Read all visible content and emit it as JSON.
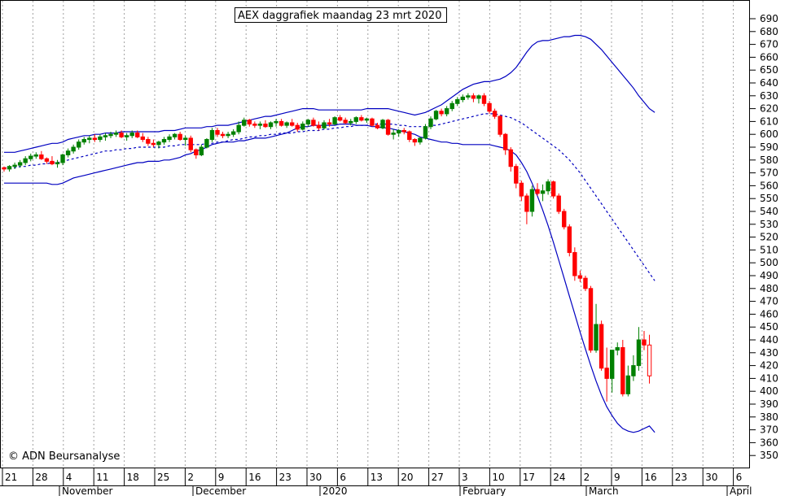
{
  "chart_data": {
    "type": "candlestick",
    "title": "AEX daggrafiek maandag 23 mrt 2020",
    "copyright": "© ADN Beursanalyse",
    "colors": {
      "background": "#ffffff",
      "up_candle": "#008000",
      "down_candle": "#ff0000",
      "bollinger_band": "#0000c0",
      "moving_average": "#0000c0",
      "grid": "#a0a0a0",
      "axis": "#000000"
    },
    "y_axis": {
      "position": "right",
      "min": 340,
      "max": 700,
      "ticks": [
        690,
        680,
        670,
        660,
        650,
        640,
        630,
        620,
        610,
        600,
        590,
        580,
        570,
        560,
        550,
        540,
        530,
        520,
        510,
        500,
        490,
        480,
        470,
        460,
        450,
        440,
        430,
        420,
        410,
        400,
        390,
        380,
        370,
        360,
        350
      ]
    },
    "x_axis": {
      "day_ticks": [
        "21",
        "28",
        "4",
        "11",
        "18",
        "25",
        "2",
        "9",
        "16",
        "23",
        "30",
        "6",
        "13",
        "20",
        "27",
        "3",
        "10",
        "17",
        "24",
        "2",
        "9",
        "16",
        "23",
        "30",
        "6"
      ],
      "month_labels": [
        "November",
        "December",
        "2020",
        "February",
        "March",
        "April"
      ]
    },
    "grid": {
      "vertical": true,
      "horizontal": false
    },
    "candles": [
      [
        574,
        575,
        571,
        573
      ],
      [
        573,
        576,
        571,
        575
      ],
      [
        575,
        578,
        573,
        576
      ],
      [
        576,
        580,
        574,
        578
      ],
      [
        578,
        583,
        576,
        581
      ],
      [
        581,
        585,
        579,
        583
      ],
      [
        583,
        586,
        581,
        584
      ],
      [
        584,
        587,
        580,
        581
      ],
      [
        581,
        582,
        577,
        579
      ],
      [
        579,
        583,
        576,
        577
      ],
      [
        577,
        580,
        574,
        578
      ],
      [
        578,
        585,
        576,
        584
      ],
      [
        584,
        589,
        582,
        587
      ],
      [
        587,
        592,
        585,
        590
      ],
      [
        590,
        596,
        588,
        594
      ],
      [
        594,
        598,
        592,
        596
      ],
      [
        596,
        599,
        593,
        597
      ],
      [
        597,
        600,
        594,
        596
      ],
      [
        596,
        600,
        594,
        598
      ],
      [
        598,
        601,
        595,
        599
      ],
      [
        599,
        602,
        597,
        600
      ],
      [
        600,
        603,
        598,
        601
      ],
      [
        601,
        603,
        597,
        598
      ],
      [
        598,
        601,
        595,
        599
      ],
      [
        599,
        603,
        597,
        601
      ],
      [
        601,
        603,
        597,
        598
      ],
      [
        598,
        601,
        594,
        596
      ],
      [
        596,
        598,
        591,
        593
      ],
      [
        593,
        596,
        590,
        592
      ],
      [
        592,
        595,
        589,
        594
      ],
      [
        594,
        598,
        592,
        596
      ],
      [
        596,
        600,
        594,
        598
      ],
      [
        598,
        601,
        596,
        600
      ],
      [
        600,
        602,
        595,
        596
      ],
      [
        596,
        599,
        591,
        597
      ],
      [
        597,
        599,
        586,
        588
      ],
      [
        588,
        589,
        581,
        584
      ],
      [
        584,
        592,
        583,
        590
      ],
      [
        590,
        597,
        589,
        596
      ],
      [
        596,
        605,
        594,
        603
      ],
      [
        603,
        605,
        598,
        600
      ],
      [
        600,
        602,
        597,
        599
      ],
      [
        599,
        602,
        597,
        600
      ],
      [
        600,
        604,
        598,
        602
      ],
      [
        602,
        610,
        600,
        607
      ],
      [
        607,
        613,
        606,
        611
      ],
      [
        611,
        612,
        606,
        608
      ],
      [
        608,
        610,
        605,
        607
      ],
      [
        607,
        610,
        604,
        608
      ],
      [
        608,
        611,
        605,
        606
      ],
      [
        606,
        610,
        604,
        609
      ],
      [
        609,
        612,
        606,
        610
      ],
      [
        610,
        612,
        606,
        607
      ],
      [
        607,
        610,
        605,
        609
      ],
      [
        609,
        612,
        606,
        607
      ],
      [
        607,
        609,
        602,
        604
      ],
      [
        604,
        610,
        603,
        608
      ],
      [
        608,
        612,
        606,
        611
      ],
      [
        611,
        613,
        606,
        607
      ],
      [
        607,
        610,
        603,
        605
      ],
      [
        605,
        611,
        604,
        609
      ],
      [
        609,
        612,
        606,
        608
      ],
      [
        608,
        614,
        607,
        613
      ],
      [
        613,
        615,
        610,
        611
      ],
      [
        611,
        613,
        608,
        609
      ],
      [
        609,
        612,
        607,
        610
      ],
      [
        610,
        614,
        608,
        613
      ],
      [
        613,
        615,
        610,
        611
      ],
      [
        611,
        613,
        609,
        612
      ],
      [
        612,
        613,
        606,
        607
      ],
      [
        607,
        609,
        604,
        605
      ],
      [
        605,
        612,
        604,
        611
      ],
      [
        611,
        612,
        599,
        600
      ],
      [
        600,
        604,
        596,
        601
      ],
      [
        601,
        604,
        598,
        603
      ],
      [
        603,
        605,
        600,
        602
      ],
      [
        602,
        603,
        594,
        596
      ],
      [
        596,
        597,
        591,
        594
      ],
      [
        594,
        598,
        592,
        597
      ],
      [
        597,
        608,
        596,
        606
      ],
      [
        606,
        614,
        604,
        612
      ],
      [
        612,
        619,
        611,
        618
      ],
      [
        618,
        620,
        614,
        616
      ],
      [
        616,
        622,
        614,
        620
      ],
      [
        620,
        626,
        618,
        624
      ],
      [
        624,
        629,
        622,
        627
      ],
      [
        627,
        631,
        625,
        629
      ],
      [
        629,
        632,
        627,
        630
      ],
      [
        630,
        632,
        625,
        628
      ],
      [
        628,
        631,
        624,
        630
      ],
      [
        630,
        632,
        622,
        624
      ],
      [
        624,
        626,
        616,
        618
      ],
      [
        618,
        620,
        612,
        614
      ],
      [
        614,
        615,
        598,
        600
      ],
      [
        600,
        601,
        584,
        588
      ],
      [
        588,
        590,
        571,
        575
      ],
      [
        575,
        577,
        558,
        562
      ],
      [
        562,
        564,
        548,
        552
      ],
      [
        552,
        554,
        530,
        540
      ],
      [
        540,
        560,
        536,
        557
      ],
      [
        557,
        562,
        552,
        554
      ],
      [
        554,
        561,
        548,
        556
      ],
      [
        556,
        565,
        553,
        563
      ],
      [
        563,
        564,
        550,
        552
      ],
      [
        552,
        554,
        538,
        540
      ],
      [
        540,
        542,
        526,
        528
      ],
      [
        528,
        530,
        505,
        508
      ],
      [
        508,
        512,
        486,
        490
      ],
      [
        490,
        494,
        485,
        488
      ],
      [
        488,
        490,
        478,
        480
      ],
      [
        480,
        482,
        430,
        432
      ],
      [
        432,
        468,
        430,
        452
      ],
      [
        452,
        455,
        416,
        418
      ],
      [
        418,
        434,
        392,
        410
      ],
      [
        410,
        430,
        399,
        432
      ],
      [
        432,
        438,
        428,
        434
      ],
      [
        434,
        440,
        396,
        398
      ],
      [
        398,
        420,
        396,
        412
      ],
      [
        412,
        428,
        408,
        420
      ],
      [
        420,
        450,
        416,
        440
      ],
      [
        440,
        447,
        432,
        436
      ],
      [
        436,
        444,
        406,
        412
      ]
    ],
    "moving_average": [
      574,
      574,
      574,
      575,
      575,
      576,
      576,
      577,
      577,
      578,
      578,
      579,
      580,
      581,
      582,
      583,
      584,
      585,
      586,
      587,
      587,
      588,
      588,
      589,
      589,
      590,
      590,
      590,
      590,
      590,
      590,
      591,
      591,
      592,
      592,
      592,
      592,
      592,
      593,
      593,
      594,
      594,
      595,
      596,
      596,
      597,
      598,
      598,
      599,
      599,
      600,
      600,
      601,
      601,
      601,
      602,
      602,
      603,
      603,
      603,
      604,
      604,
      605,
      605,
      606,
      606,
      607,
      607,
      607,
      608,
      608,
      608,
      608,
      608,
      607,
      607,
      606,
      606,
      606,
      606,
      607,
      607,
      608,
      609,
      610,
      611,
      612,
      613,
      614,
      615,
      616,
      616,
      616,
      615,
      614,
      613,
      611,
      609,
      606,
      603,
      600,
      597,
      594,
      591,
      588,
      584,
      580,
      575,
      570,
      564,
      558,
      552,
      546,
      540,
      534,
      528,
      522,
      516,
      510,
      504,
      498,
      492,
      486
    ],
    "bollinger_upper": [
      586,
      586,
      586,
      587,
      588,
      589,
      590,
      591,
      592,
      593,
      593,
      594,
      596,
      597,
      598,
      599,
      599,
      600,
      600,
      601,
      601,
      601,
      602,
      602,
      602,
      602,
      602,
      602,
      602,
      602,
      603,
      603,
      603,
      604,
      605,
      605,
      605,
      605,
      606,
      606,
      607,
      607,
      607,
      608,
      609,
      610,
      611,
      612,
      613,
      614,
      614,
      615,
      616,
      617,
      618,
      619,
      620,
      620,
      620,
      619,
      619,
      619,
      619,
      619,
      619,
      619,
      619,
      619,
      620,
      620,
      620,
      620,
      620,
      619,
      618,
      617,
      616,
      615,
      616,
      617,
      619,
      621,
      623,
      626,
      629,
      632,
      635,
      637,
      639,
      640,
      641,
      641,
      642,
      643,
      645,
      648,
      652,
      658,
      664,
      669,
      672,
      673,
      673,
      674,
      675,
      676,
      676,
      677,
      677,
      676,
      674,
      670,
      666,
      661,
      656,
      651,
      646,
      641,
      636,
      630,
      625,
      620,
      617
    ],
    "bollinger_lower": [
      562,
      562,
      562,
      562,
      562,
      562,
      562,
      562,
      562,
      561,
      561,
      562,
      564,
      566,
      567,
      568,
      569,
      570,
      571,
      572,
      573,
      574,
      575,
      576,
      577,
      578,
      578,
      579,
      579,
      579,
      580,
      580,
      581,
      582,
      584,
      585,
      587,
      588,
      590,
      592,
      593,
      594,
      594,
      594,
      595,
      595,
      596,
      597,
      597,
      597,
      598,
      599,
      600,
      601,
      603,
      605,
      606,
      606,
      607,
      607,
      607,
      607,
      607,
      608,
      608,
      608,
      607,
      607,
      607,
      606,
      606,
      605,
      605,
      604,
      603,
      602,
      601,
      600,
      598,
      597,
      596,
      595,
      594,
      594,
      593,
      593,
      592,
      592,
      592,
      592,
      592,
      592,
      591,
      590,
      589,
      587,
      584,
      578,
      571,
      562,
      552,
      541,
      529,
      516,
      502,
      488,
      474,
      460,
      446,
      433,
      420,
      408,
      397,
      388,
      381,
      375,
      371,
      369,
      368,
      369,
      371,
      373,
      368
    ]
  }
}
